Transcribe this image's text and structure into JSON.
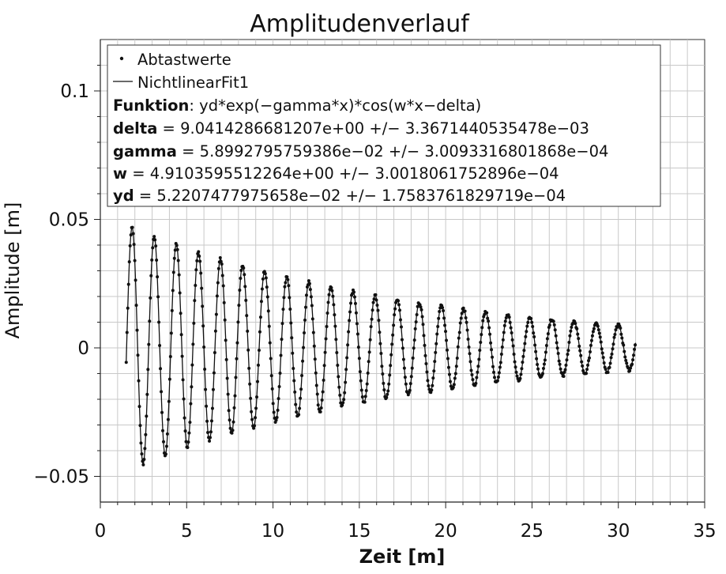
{
  "chart_data": {
    "type": "scatter",
    "title": "Amplitudenverlauf",
    "xlabel": "Zeit [m]",
    "ylabel": "Amplitude [m]",
    "xlim": [
      0,
      35
    ],
    "ylim": [
      -0.06,
      0.12
    ],
    "x_ticks": [
      0,
      5,
      10,
      15,
      20,
      25,
      30,
      35
    ],
    "x_tick_labels": [
      "0",
      "5",
      "10",
      "15",
      "20",
      "25",
      "30",
      "35"
    ],
    "y_ticks": [
      -0.05,
      0,
      0.05,
      0.1
    ],
    "y_tick_labels": [
      "−0.05",
      "0",
      "0.05",
      "0.1"
    ],
    "grid": true,
    "legend_position": "top-left",
    "series": [
      {
        "name": "Abtastwerte",
        "kind": "scatter",
        "color": "#111111",
        "x_range": [
          1.5,
          31.0
        ],
        "sample_step": 0.045
      },
      {
        "name": "NichtlinearFit1",
        "kind": "line",
        "color": "#111111",
        "x_range": [
          1.5,
          31.0
        ]
      }
    ],
    "fit": {
      "function_label": "Funktion",
      "function": "yd*exp(−gamma*x)*cos(w*x−delta)",
      "params": [
        {
          "name": "delta",
          "value": 9.0414286681207,
          "value_text": "9.0414286681207e+00",
          "error_text": "3.3671440535478e−03"
        },
        {
          "name": "gamma",
          "value": 0.058992795759386,
          "value_text": "5.8992795759386e−02",
          "error_text": "3.0093316801868e−04"
        },
        {
          "name": "w",
          "value": 4.9103595512264,
          "value_text": "4.9103595512264e+00",
          "error_text": "3.0018061752896e−04"
        },
        {
          "name": "yd",
          "value": 0.052207477975658,
          "value_text": "5.2207477975658e−02",
          "error_text": "1.7583761829719e−04"
        }
      ]
    }
  }
}
